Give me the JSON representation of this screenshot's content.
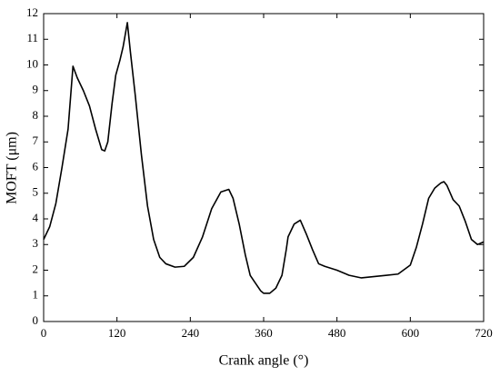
{
  "chart_data": {
    "type": "line",
    "x_label": "Crank angle (°)",
    "y_label": "MOFT (μm)",
    "x": [
      0,
      10,
      20,
      30,
      40,
      48,
      55,
      65,
      75,
      85,
      95,
      100,
      105,
      112,
      118,
      125,
      130,
      137,
      142,
      150,
      160,
      170,
      180,
      190,
      200,
      215,
      230,
      245,
      260,
      275,
      290,
      303,
      310,
      320,
      330,
      338,
      345,
      355,
      360,
      370,
      380,
      390,
      397,
      400,
      410,
      420,
      430,
      440,
      450,
      460,
      480,
      500,
      520,
      540,
      560,
      580,
      600,
      610,
      620,
      630,
      640,
      650,
      655,
      660,
      670,
      680,
      690,
      700,
      710,
      720
    ],
    "series": [
      {
        "color": "#000000",
        "values": [
          3.2,
          3.7,
          4.6,
          6.0,
          7.5,
          9.95,
          9.5,
          9.0,
          8.4,
          7.5,
          6.7,
          6.65,
          7.0,
          8.5,
          9.6,
          10.2,
          10.7,
          11.65,
          10.5,
          8.8,
          6.5,
          4.5,
          3.2,
          2.5,
          2.25,
          2.12,
          2.15,
          2.5,
          3.3,
          4.4,
          5.05,
          5.15,
          4.8,
          3.8,
          2.6,
          1.8,
          1.55,
          1.2,
          1.1,
          1.1,
          1.3,
          1.8,
          2.8,
          3.3,
          3.8,
          3.95,
          3.4,
          2.8,
          2.25,
          2.15,
          2.0,
          1.8,
          1.7,
          1.75,
          1.8,
          1.85,
          2.2,
          2.9,
          3.8,
          4.8,
          5.2,
          5.4,
          5.45,
          5.3,
          4.75,
          4.5,
          3.9,
          3.2,
          3.0,
          3.1
        ]
      }
    ],
    "xlim": [
      0,
      720
    ],
    "xticks": [
      0,
      120,
      240,
      360,
      480,
      600,
      720
    ],
    "ylim": [
      0,
      12
    ],
    "yticks": [
      0,
      1,
      2,
      3,
      4,
      5,
      6,
      7,
      8,
      9,
      10,
      11,
      12
    ]
  }
}
